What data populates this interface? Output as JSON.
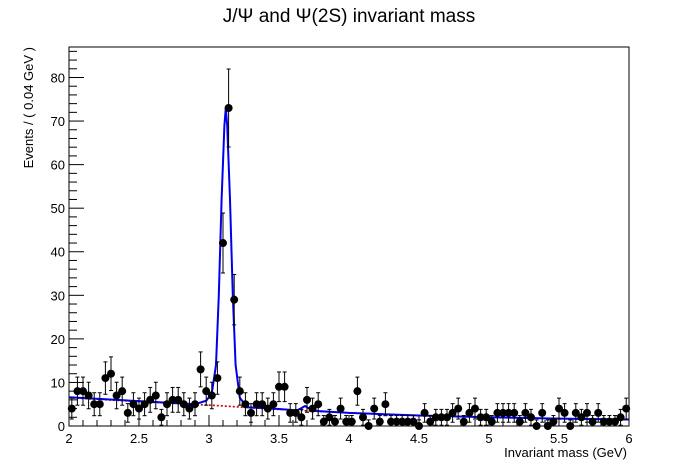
{
  "chart_data": {
    "type": "scatter",
    "title": "J/Ψ and Ψ(2S) invariant mass",
    "xlabel": "Invariant mass (GeV)",
    "ylabel": "Events / ( 0.04 GeV )",
    "xlim": [
      2,
      6
    ],
    "ylim": [
      0,
      87
    ],
    "x_ticks": [
      "2",
      "2.5",
      "3",
      "3.5",
      "4",
      "4.5",
      "5",
      "5.5",
      "6"
    ],
    "y_ticks": [
      "0",
      "10",
      "20",
      "30",
      "40",
      "50",
      "60",
      "70",
      "80"
    ],
    "grid": false,
    "series": [
      {
        "kind": "data-points-with-errors",
        "color": "#000000",
        "points": [
          {
            "x": 2.02,
            "y": 4
          },
          {
            "x": 2.06,
            "y": 8
          },
          {
            "x": 2.1,
            "y": 8
          },
          {
            "x": 2.14,
            "y": 7
          },
          {
            "x": 2.18,
            "y": 5
          },
          {
            "x": 2.22,
            "y": 5
          },
          {
            "x": 2.26,
            "y": 11
          },
          {
            "x": 2.3,
            "y": 12
          },
          {
            "x": 2.34,
            "y": 7
          },
          {
            "x": 2.38,
            "y": 8
          },
          {
            "x": 2.42,
            "y": 3
          },
          {
            "x": 2.46,
            "y": 5
          },
          {
            "x": 2.5,
            "y": 4
          },
          {
            "x": 2.54,
            "y": 5
          },
          {
            "x": 2.58,
            "y": 6
          },
          {
            "x": 2.62,
            "y": 7
          },
          {
            "x": 2.66,
            "y": 2
          },
          {
            "x": 2.7,
            "y": 5
          },
          {
            "x": 2.74,
            "y": 6
          },
          {
            "x": 2.78,
            "y": 6
          },
          {
            "x": 2.82,
            "y": 5
          },
          {
            "x": 2.86,
            "y": 4
          },
          {
            "x": 2.9,
            "y": 5
          },
          {
            "x": 2.94,
            "y": 13
          },
          {
            "x": 2.98,
            "y": 8
          },
          {
            "x": 3.02,
            "y": 7
          },
          {
            "x": 3.06,
            "y": 11
          },
          {
            "x": 3.1,
            "y": 42
          },
          {
            "x": 3.14,
            "y": 73
          },
          {
            "x": 3.18,
            "y": 29
          },
          {
            "x": 3.22,
            "y": 8
          },
          {
            "x": 3.26,
            "y": 5
          },
          {
            "x": 3.3,
            "y": 3
          },
          {
            "x": 3.34,
            "y": 5
          },
          {
            "x": 3.38,
            "y": 5
          },
          {
            "x": 3.42,
            "y": 4
          },
          {
            "x": 3.46,
            "y": 5
          },
          {
            "x": 3.5,
            "y": 9
          },
          {
            "x": 3.54,
            "y": 9
          },
          {
            "x": 3.58,
            "y": 3
          },
          {
            "x": 3.62,
            "y": 3
          },
          {
            "x": 3.66,
            "y": 2
          },
          {
            "x": 3.7,
            "y": 6
          },
          {
            "x": 3.74,
            "y": 4
          },
          {
            "x": 3.78,
            "y": 5
          },
          {
            "x": 3.82,
            "y": 1
          },
          {
            "x": 3.86,
            "y": 2
          },
          {
            "x": 3.9,
            "y": 1
          },
          {
            "x": 3.94,
            "y": 4
          },
          {
            "x": 3.98,
            "y": 1
          },
          {
            "x": 4.02,
            "y": 1
          },
          {
            "x": 4.06,
            "y": 8
          },
          {
            "x": 4.1,
            "y": 2
          },
          {
            "x": 4.14,
            "y": 0
          },
          {
            "x": 4.18,
            "y": 4
          },
          {
            "x": 4.22,
            "y": 1
          },
          {
            "x": 4.26,
            "y": 5
          },
          {
            "x": 4.3,
            "y": 1
          },
          {
            "x": 4.34,
            "y": 1
          },
          {
            "x": 4.38,
            "y": 1
          },
          {
            "x": 4.42,
            "y": 1
          },
          {
            "x": 4.46,
            "y": 1
          },
          {
            "x": 4.5,
            "y": 0
          },
          {
            "x": 4.54,
            "y": 3
          },
          {
            "x": 4.58,
            "y": 1
          },
          {
            "x": 4.62,
            "y": 2
          },
          {
            "x": 4.66,
            "y": 2
          },
          {
            "x": 4.7,
            "y": 2
          },
          {
            "x": 4.74,
            "y": 3
          },
          {
            "x": 4.78,
            "y": 4
          },
          {
            "x": 4.82,
            "y": 1
          },
          {
            "x": 4.86,
            "y": 3
          },
          {
            "x": 4.9,
            "y": 4
          },
          {
            "x": 4.94,
            "y": 2
          },
          {
            "x": 4.98,
            "y": 2
          },
          {
            "x": 5.02,
            "y": 1
          },
          {
            "x": 5.06,
            "y": 3
          },
          {
            "x": 5.1,
            "y": 3
          },
          {
            "x": 5.14,
            "y": 3
          },
          {
            "x": 5.18,
            "y": 3
          },
          {
            "x": 5.22,
            "y": 1
          },
          {
            "x": 5.26,
            "y": 3
          },
          {
            "x": 5.3,
            "y": 2
          },
          {
            "x": 5.34,
            "y": 0
          },
          {
            "x": 5.38,
            "y": 3
          },
          {
            "x": 5.42,
            "y": 0
          },
          {
            "x": 5.46,
            "y": 1
          },
          {
            "x": 5.5,
            "y": 4
          },
          {
            "x": 5.54,
            "y": 3
          },
          {
            "x": 5.58,
            "y": 0
          },
          {
            "x": 5.62,
            "y": 3
          },
          {
            "x": 5.66,
            "y": 2
          },
          {
            "x": 5.7,
            "y": 3
          },
          {
            "x": 5.74,
            "y": 1
          },
          {
            "x": 5.78,
            "y": 3
          },
          {
            "x": 5.82,
            "y": 1
          },
          {
            "x": 5.86,
            "y": 1
          },
          {
            "x": 5.9,
            "y": 1
          },
          {
            "x": 5.94,
            "y": 2
          },
          {
            "x": 5.98,
            "y": 4
          }
        ]
      },
      {
        "kind": "fit-total",
        "color": "#0000ee",
        "points": [
          {
            "x": 2.0,
            "y": 6.6
          },
          {
            "x": 2.5,
            "y": 5.7
          },
          {
            "x": 2.9,
            "y": 5.0
          },
          {
            "x": 2.98,
            "y": 5.8
          },
          {
            "x": 3.02,
            "y": 7.5
          },
          {
            "x": 3.05,
            "y": 14
          },
          {
            "x": 3.07,
            "y": 30
          },
          {
            "x": 3.09,
            "y": 52
          },
          {
            "x": 3.11,
            "y": 69
          },
          {
            "x": 3.12,
            "y": 73
          },
          {
            "x": 3.13,
            "y": 69
          },
          {
            "x": 3.15,
            "y": 52
          },
          {
            "x": 3.17,
            "y": 30
          },
          {
            "x": 3.19,
            "y": 14
          },
          {
            "x": 3.22,
            "y": 6.5
          },
          {
            "x": 3.27,
            "y": 4.3
          },
          {
            "x": 3.5,
            "y": 3.9
          },
          {
            "x": 3.63,
            "y": 3.6
          },
          {
            "x": 3.66,
            "y": 4.1
          },
          {
            "x": 3.686,
            "y": 4.6
          },
          {
            "x": 3.71,
            "y": 4.1
          },
          {
            "x": 3.74,
            "y": 3.5
          },
          {
            "x": 4.0,
            "y": 3.0
          },
          {
            "x": 4.5,
            "y": 2.4
          },
          {
            "x": 5.0,
            "y": 2.0
          },
          {
            "x": 5.5,
            "y": 1.7
          },
          {
            "x": 6.0,
            "y": 1.5
          }
        ]
      },
      {
        "kind": "fit-background",
        "color": "#cc0000",
        "points": [
          {
            "x": 2.0,
            "y": 6.5
          },
          {
            "x": 2.5,
            "y": 5.6
          },
          {
            "x": 3.0,
            "y": 4.8
          },
          {
            "x": 3.5,
            "y": 3.8
          },
          {
            "x": 4.0,
            "y": 3.0
          },
          {
            "x": 4.5,
            "y": 2.4
          },
          {
            "x": 5.0,
            "y": 2.0
          },
          {
            "x": 5.5,
            "y": 1.7
          },
          {
            "x": 6.0,
            "y": 1.5
          }
        ]
      }
    ]
  }
}
